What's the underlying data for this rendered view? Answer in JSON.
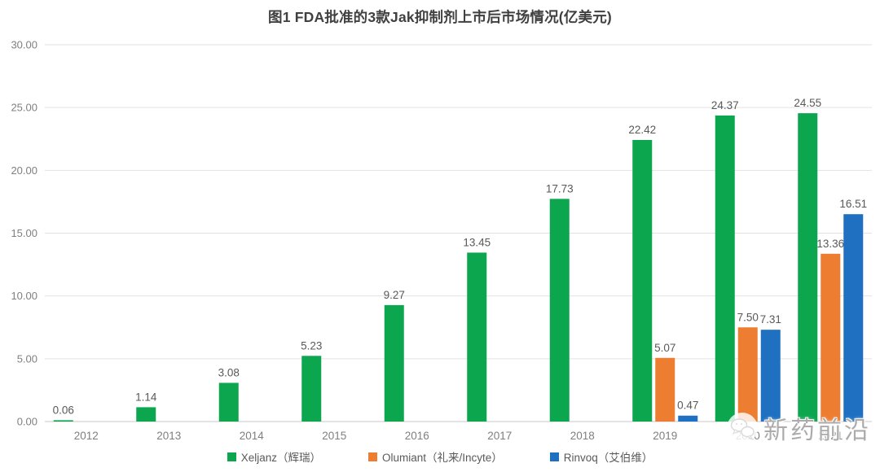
{
  "chart_data": {
    "type": "bar",
    "title": "图1 FDA批准的3款Jak抑制剂上市后市场情况(亿美元)",
    "categories": [
      "2012",
      "2013",
      "2014",
      "2015",
      "2016",
      "2017",
      "2018",
      "2019",
      "2020",
      "2021"
    ],
    "series": [
      {
        "name": "Xeljanz（辉瑞）",
        "color": "#0ca64f",
        "values": [
          0.06,
          1.14,
          3.08,
          5.23,
          9.27,
          13.45,
          17.73,
          22.42,
          24.37,
          24.55
        ]
      },
      {
        "name": "Olumiant（礼来/Incyte）",
        "color": "#ed7d31",
        "values": [
          null,
          null,
          null,
          null,
          null,
          null,
          null,
          5.07,
          7.5,
          13.36
        ]
      },
      {
        "name": "Rinvoq（艾伯维）",
        "color": "#1f70c1",
        "values": [
          null,
          null,
          null,
          null,
          null,
          null,
          null,
          0.47,
          7.31,
          16.51
        ]
      }
    ],
    "ylim": [
      0,
      30
    ],
    "ytick_step": 5,
    "ytick_labels": [
      "0.00",
      "5.00",
      "10.00",
      "15.00",
      "20.00",
      "25.00",
      "30.00"
    ],
    "grid": true,
    "legend_position": "bottom",
    "data_labels": true,
    "xlabel": "",
    "ylabel": ""
  },
  "colors": {
    "title": "#404040",
    "axis_text": "#7f7f7f",
    "data_label": "#595959",
    "gridline": "#e2e2e2",
    "axis_line": "#c8c8c8",
    "legend_text": "#595959",
    "background": "#ffffff"
  },
  "watermark": {
    "text": "新药前沿",
    "icon": "wechat-icon"
  }
}
